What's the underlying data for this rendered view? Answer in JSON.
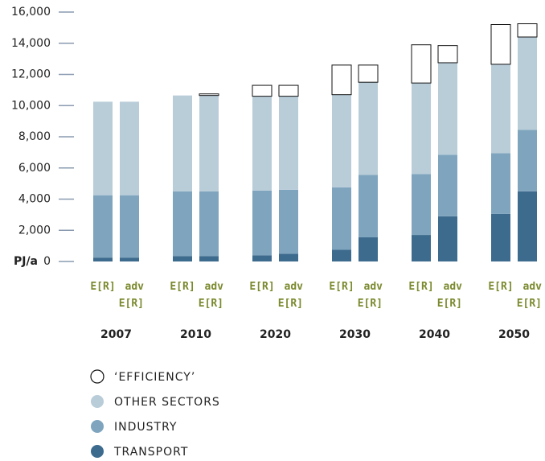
{
  "chart_data": {
    "type": "stacked_bar",
    "y_label": "PJ/a",
    "categories": [
      "2007",
      "2010",
      "2020",
      "2030",
      "2040",
      "2050"
    ],
    "scenarios": [
      "E[R]",
      "adv E[R]"
    ],
    "series": [
      {
        "name": "TRANSPORT",
        "color": "#3d6b8e",
        "values": [
          [
            250,
            250
          ],
          [
            350,
            350
          ],
          [
            400,
            500
          ],
          [
            750,
            1550
          ],
          [
            1700,
            2900
          ],
          [
            3050,
            4500
          ]
        ]
      },
      {
        "name": "INDUSTRY",
        "color": "#7fa5be",
        "values": [
          [
            4000,
            4000
          ],
          [
            4150,
            4150
          ],
          [
            4150,
            4100
          ],
          [
            4000,
            4000
          ],
          [
            3900,
            3950
          ],
          [
            3900,
            3950
          ]
        ]
      },
      {
        "name": "OTHER SECTORS",
        "color": "#b9cdd9",
        "values": [
          [
            6000,
            6000
          ],
          [
            6150,
            6150
          ],
          [
            6050,
            6000
          ],
          [
            5950,
            5950
          ],
          [
            5850,
            5900
          ],
          [
            5700,
            5950
          ]
        ]
      },
      {
        "name": "‘EFFICIENCY’",
        "color": "#ffffff",
        "values": [
          [
            0,
            0
          ],
          [
            0,
            100
          ],
          [
            700,
            700
          ],
          [
            1900,
            1100
          ],
          [
            2450,
            1100
          ],
          [
            2550,
            850
          ]
        ]
      }
    ],
    "ylim": [
      0,
      16000
    ],
    "yticks": [
      0,
      {
        "value": 2000,
        "label": "2,000"
      },
      {
        "value": 4000,
        "label": "4,000"
      },
      {
        "value": 6000,
        "label": "6,000"
      },
      {
        "value": 8000,
        "label": "8,000"
      },
      {
        "value": 10000,
        "label": "10,000"
      },
      {
        "value": 12000,
        "label": "12,000"
      },
      {
        "value": 14000,
        "label": "14,000"
      },
      {
        "value": 16000,
        "label": "16,000"
      }
    ],
    "legend": "bottom-left"
  }
}
